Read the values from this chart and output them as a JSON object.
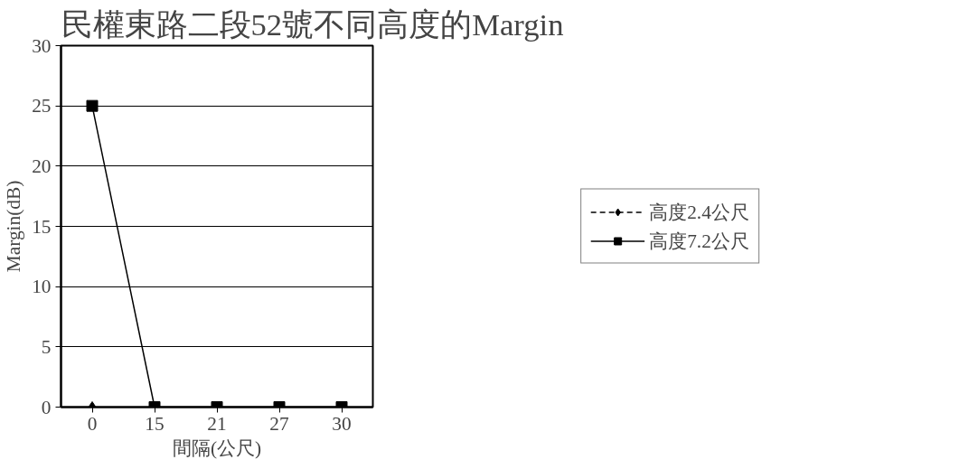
{
  "chart_data": {
    "type": "line",
    "title": "民權東路二段52號不同高度的Margin",
    "xlabel": "間隔(公尺)",
    "ylabel": "Margin(dB)",
    "categories": [
      "0",
      "15",
      "21",
      "27",
      "30"
    ],
    "series": [
      {
        "name": "高度2.4公尺",
        "color": "#000000",
        "values": [
          0,
          null,
          null,
          null,
          null
        ],
        "marker": "diamond",
        "line_style": "dashed"
      },
      {
        "name": "高度7.2公尺",
        "color": "#000000",
        "values": [
          25,
          0,
          0,
          0,
          0
        ],
        "marker": "square",
        "line_style": "solid"
      }
    ],
    "ylim": [
      0,
      30
    ],
    "yticks": [
      0,
      5,
      10,
      15,
      20,
      25,
      30
    ],
    "grid": "y",
    "legend": "right"
  }
}
